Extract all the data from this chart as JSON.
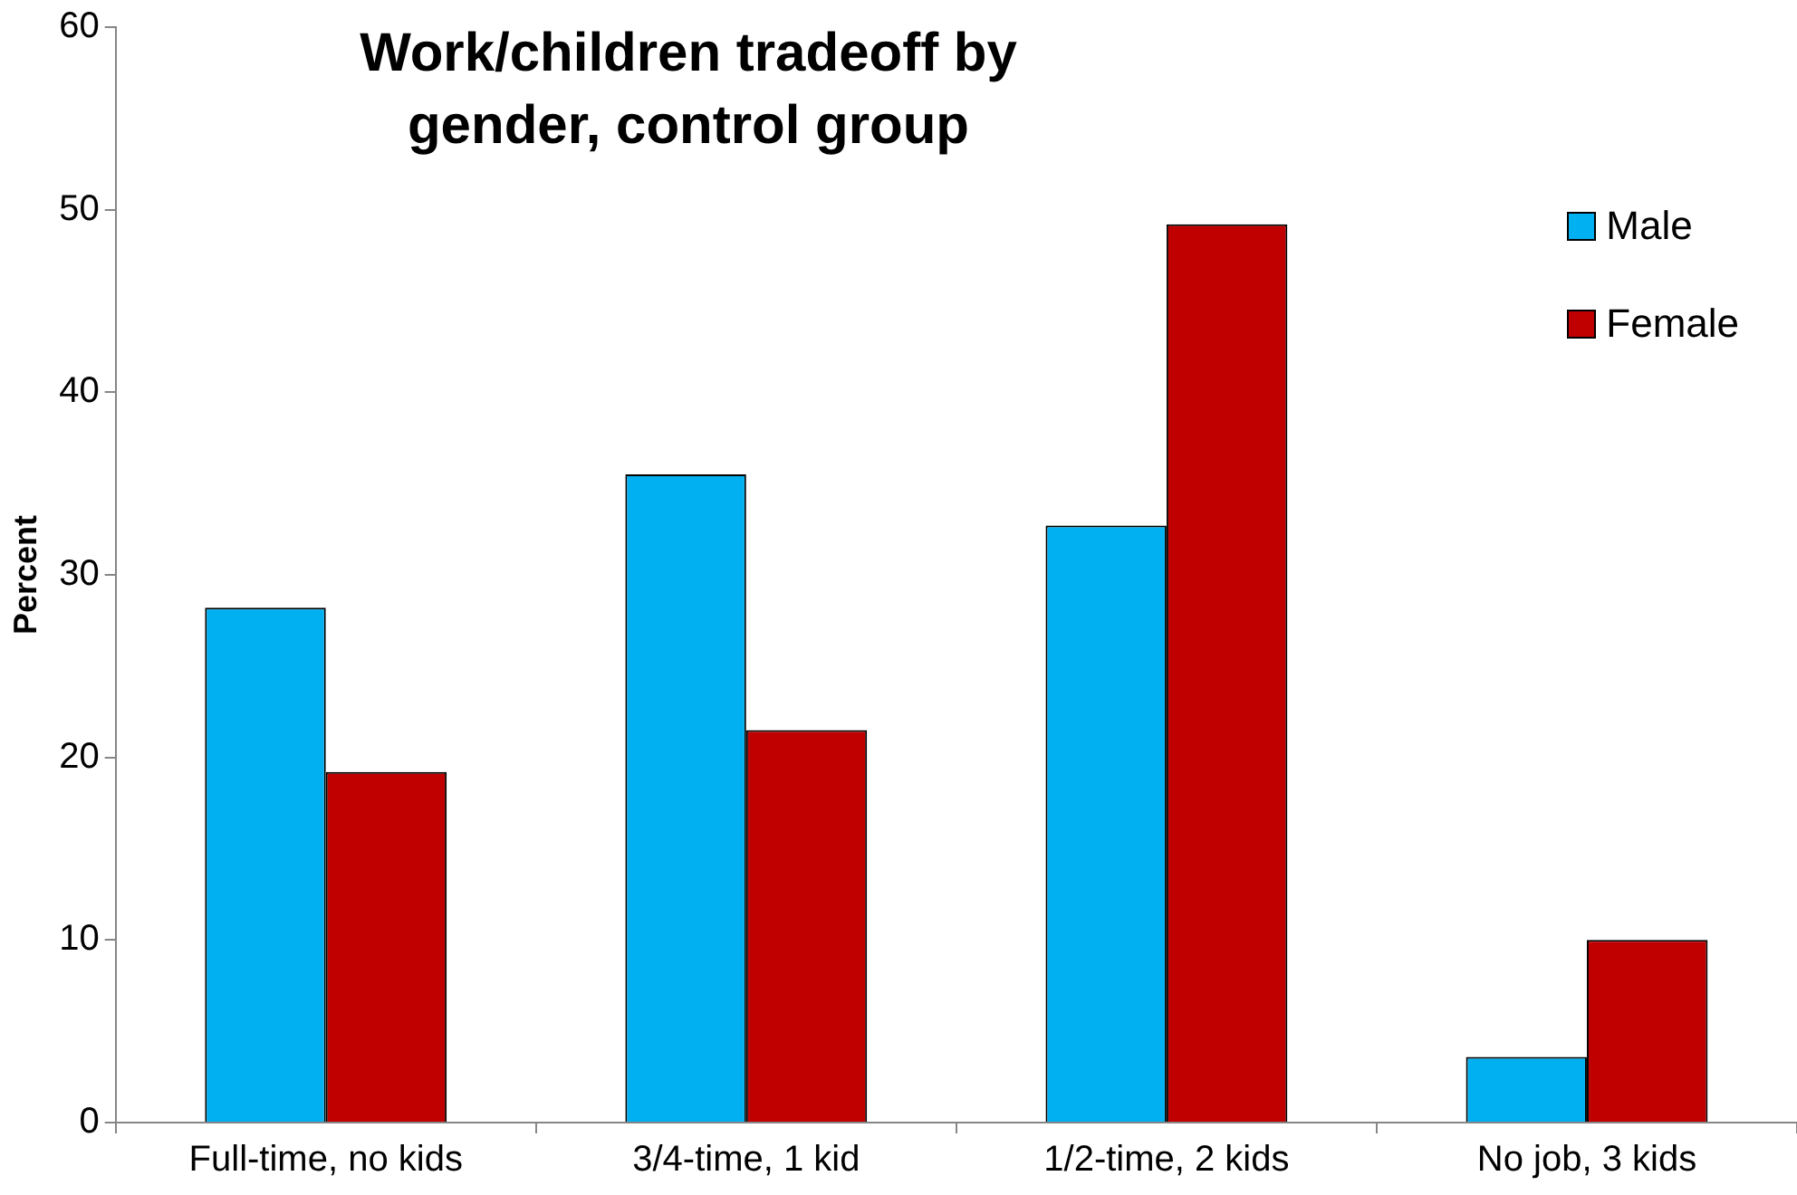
{
  "chart_data": {
    "type": "bar",
    "title": "Work/children tradeoff by gender, control group",
    "ylabel": "Percent",
    "categories": [
      "Full-time, no kids",
      "3/4-time, 1 kid",
      "1/2-time, 2 kids",
      "No job, 3 kids"
    ],
    "series": [
      {
        "name": "Male",
        "color": "#00b0f0",
        "values": [
          28.2,
          35.5,
          32.7,
          3.6
        ]
      },
      {
        "name": "Female",
        "color": "#c00000",
        "values": [
          19.2,
          21.5,
          49.2,
          10.0
        ]
      }
    ],
    "ylim": [
      0,
      60
    ],
    "yticks": [
      0,
      10,
      20,
      30,
      40,
      50,
      60
    ],
    "grid": false,
    "legend": "top right"
  }
}
